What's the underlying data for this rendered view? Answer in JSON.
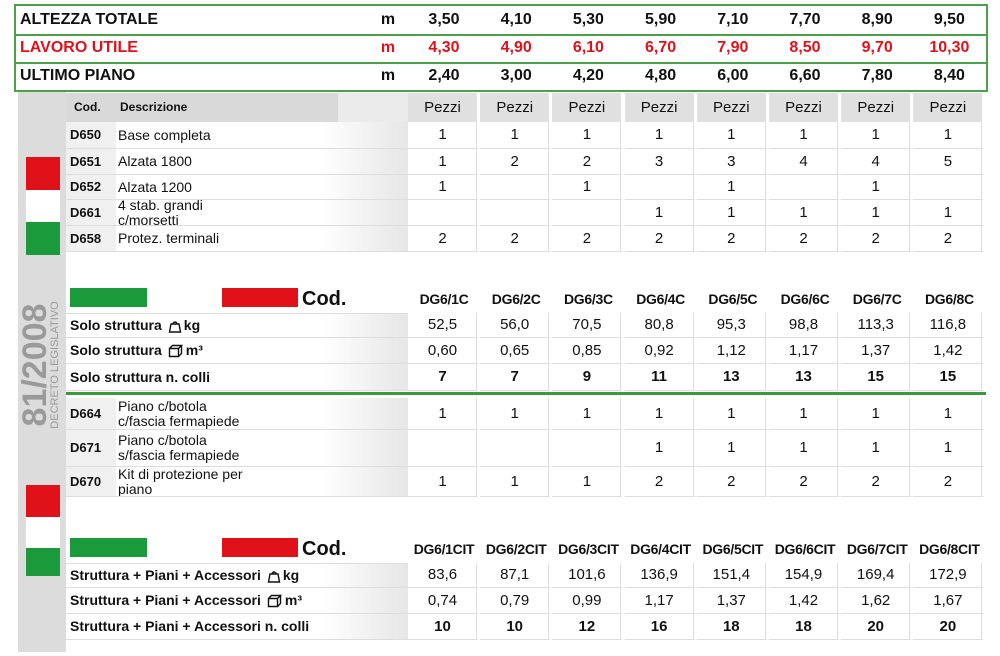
{
  "header": {
    "rows": [
      {
        "label": "ALTEZZA TOTALE",
        "unit": "m",
        "values": [
          "3,50",
          "4,10",
          "5,30",
          "5,90",
          "7,10",
          "7,70",
          "8,90",
          "9,50"
        ]
      },
      {
        "label": "LAVORO UTILE",
        "unit": "m",
        "values": [
          "4,30",
          "4,90",
          "6,10",
          "6,70",
          "7,90",
          "8,50",
          "9,70",
          "10,30"
        ]
      },
      {
        "label": "ULTIMO PIANO",
        "unit": "m",
        "values": [
          "2,40",
          "3,00",
          "4,20",
          "4,80",
          "6,00",
          "6,60",
          "7,80",
          "8,40"
        ]
      }
    ]
  },
  "sidebar": {
    "decree_number": "81/2008",
    "decree_label": "DECRETO LEGISLATIVO"
  },
  "components": {
    "headers": {
      "code": "Cod.",
      "description": "Descrizione",
      "quantity": [
        "Pezzi",
        "Pezzi",
        "Pezzi",
        "Pezzi",
        "Pezzi",
        "Pezzi",
        "Pezzi",
        "Pezzi"
      ]
    },
    "rows": [
      {
        "code": "D650",
        "description": "Base completa",
        "quantities": [
          "1",
          "1",
          "1",
          "1",
          "1",
          "1",
          "1",
          "1"
        ]
      },
      {
        "code": "D651",
        "description": "Alzata 1800",
        "quantities": [
          "1",
          "2",
          "2",
          "3",
          "3",
          "4",
          "4",
          "5"
        ]
      },
      {
        "code": "D652",
        "description": "Alzata 1200",
        "quantities": [
          "1",
          null,
          "1",
          null,
          "1",
          null,
          "1",
          null
        ]
      },
      {
        "code": "D661",
        "description": "4 stab. grandi c/morsetti",
        "quantities": [
          null,
          null,
          null,
          "1",
          "1",
          "1",
          "1",
          "1"
        ]
      },
      {
        "code": "D658",
        "description": "Protez. terminali",
        "quantities": [
          "2",
          "2",
          "2",
          "2",
          "2",
          "2",
          "2",
          "2"
        ]
      }
    ]
  },
  "structure": {
    "code_label": "Cod.",
    "codes": [
      "DG6/1C",
      "DG6/2C",
      "DG6/3C",
      "DG6/4C",
      "DG6/5C",
      "DG6/6C",
      "DG6/7C",
      "DG6/8C"
    ],
    "rows": [
      {
        "label": "Solo struttura",
        "unit": "kg",
        "values": [
          "52,5",
          "56,0",
          "70,5",
          "80,8",
          "95,3",
          "98,8",
          "113,3",
          "116,8"
        ]
      },
      {
        "label": "Solo struttura",
        "unit": "m³",
        "values": [
          "0,60",
          "0,65",
          "0,85",
          "0,92",
          "1,12",
          "1,17",
          "1,37",
          "1,42"
        ]
      },
      {
        "label": "Solo struttura n. colli",
        "values": [
          "7",
          "7",
          "9",
          "11",
          "13",
          "13",
          "15",
          "15"
        ]
      }
    ]
  },
  "platforms": {
    "rows": [
      {
        "code": "D664",
        "description": "Piano c/botola c/fascia fermapiede",
        "quantities": [
          "1",
          "1",
          "1",
          "1",
          "1",
          "1",
          "1",
          "1"
        ]
      },
      {
        "code": "D671",
        "description": "Piano c/botola s/fascia fermapiede",
        "quantities": [
          null,
          null,
          null,
          "1",
          "1",
          "1",
          "1",
          "1"
        ]
      },
      {
        "code": "D670",
        "description": "Kit di protezione per piano",
        "quantities": [
          "1",
          "1",
          "1",
          "2",
          "2",
          "2",
          "2",
          "2"
        ]
      }
    ]
  },
  "full_kit": {
    "code_label": "Cod.",
    "codes": [
      "DG6/1CIT",
      "DG6/2CIT",
      "DG6/3CIT",
      "DG6/4CIT",
      "DG6/5CIT",
      "DG6/6CIT",
      "DG6/7CIT",
      "DG6/8CIT"
    ],
    "rows": [
      {
        "label": "Struttura + Piani + Accessori",
        "unit": "kg",
        "values": [
          "83,6",
          "87,1",
          "101,6",
          "136,9",
          "151,4",
          "154,9",
          "169,4",
          "172,9"
        ]
      },
      {
        "label": "Struttura + Piani + Accessori",
        "unit": "m³",
        "values": [
          "0,74",
          "0,79",
          "0,99",
          "1,17",
          "1,37",
          "1,42",
          "1,62",
          "1,67"
        ]
      },
      {
        "label": "Struttura + Piani + Accessori n. colli",
        "values": [
          "10",
          "10",
          "12",
          "16",
          "18",
          "18",
          "20",
          "20"
        ]
      }
    ]
  }
}
